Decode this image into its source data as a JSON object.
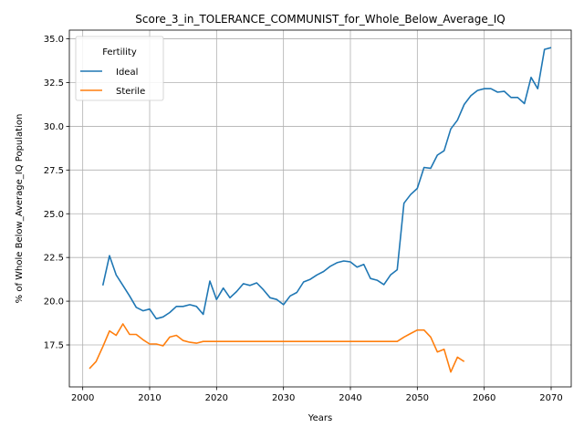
{
  "chart_data": {
    "type": "line",
    "title": "Score_3_in_TOLERANCE_COMMUNIST_for_Whole_Below_Average_IQ",
    "xlabel": "Years",
    "ylabel": "% of Whole Below_Average_IQ Population",
    "xlim": [
      1998,
      2073
    ],
    "ylim": [
      15.1,
      35.5
    ],
    "xticks": [
      2000,
      2010,
      2020,
      2030,
      2040,
      2050,
      2060,
      2070
    ],
    "yticks": [
      17.5,
      20.0,
      22.5,
      25.0,
      27.5,
      30.0,
      32.5,
      35.0
    ],
    "ytick_labels": [
      "17.5",
      "20.0",
      "22.5",
      "25.0",
      "27.5",
      "30.0",
      "32.5",
      "35.0"
    ],
    "grid": true,
    "legend": {
      "title": "Fertility",
      "placement": "top-left"
    },
    "series": [
      {
        "name": "Ideal",
        "color": "#1f77b4",
        "x": [
          2003,
          2004,
          2005,
          2006,
          2007,
          2008,
          2009,
          2010,
          2011,
          2012,
          2013,
          2014,
          2015,
          2016,
          2017,
          2018,
          2019,
          2020,
          2021,
          2022,
          2023,
          2024,
          2025,
          2026,
          2027,
          2028,
          2029,
          2030,
          2031,
          2032,
          2033,
          2034,
          2035,
          2036,
          2037,
          2038,
          2039,
          2040,
          2041,
          2042,
          2043,
          2044,
          2045,
          2046,
          2047,
          2048,
          2049,
          2050,
          2051,
          2052,
          2053,
          2054,
          2055,
          2056,
          2057,
          2058,
          2059,
          2060,
          2061,
          2062,
          2063,
          2064,
          2065,
          2066,
          2067,
          2068,
          2069,
          2070
        ],
        "y": [
          20.9,
          22.6,
          21.5,
          20.9,
          20.3,
          19.65,
          19.45,
          19.55,
          19.0,
          19.1,
          19.35,
          19.7,
          19.7,
          19.8,
          19.7,
          19.25,
          21.15,
          20.1,
          20.75,
          20.2,
          20.55,
          21.0,
          20.9,
          21.05,
          20.65,
          20.2,
          20.1,
          19.8,
          20.3,
          20.5,
          21.1,
          21.25,
          21.5,
          21.7,
          22.0,
          22.2,
          22.3,
          22.25,
          21.95,
          22.1,
          21.3,
          21.2,
          20.95,
          21.5,
          21.8,
          25.6,
          26.1,
          26.45,
          27.65,
          27.6,
          28.35,
          28.6,
          29.85,
          30.35,
          31.25,
          31.75,
          32.05,
          32.15,
          32.15,
          31.95,
          32.0,
          31.65,
          31.65,
          31.3,
          32.8,
          32.15,
          34.4,
          34.5
        ]
      },
      {
        "name": "Sterile",
        "color": "#ff7f0e",
        "x": [
          2001,
          2002,
          2003,
          2004,
          2005,
          2006,
          2007,
          2008,
          2009,
          2010,
          2011,
          2012,
          2013,
          2014,
          2015,
          2016,
          2017,
          2018,
          2019,
          2020,
          2021,
          2022,
          2023,
          2024,
          2025,
          2026,
          2027,
          2028,
          2029,
          2030,
          2031,
          2032,
          2033,
          2034,
          2035,
          2036,
          2037,
          2038,
          2039,
          2040,
          2041,
          2042,
          2043,
          2044,
          2045,
          2046,
          2047,
          2048,
          2049,
          2050,
          2051,
          2052,
          2053,
          2054,
          2055,
          2056,
          2057
        ],
        "y": [
          16.15,
          16.55,
          17.4,
          18.3,
          18.05,
          18.7,
          18.1,
          18.1,
          17.8,
          17.55,
          17.55,
          17.45,
          17.95,
          18.05,
          17.75,
          17.65,
          17.6,
          17.7,
          17.7,
          17.7,
          17.7,
          17.7,
          17.7,
          17.7,
          17.7,
          17.7,
          17.7,
          17.7,
          17.7,
          17.7,
          17.7,
          17.7,
          17.7,
          17.7,
          17.7,
          17.7,
          17.7,
          17.7,
          17.7,
          17.7,
          17.7,
          17.7,
          17.7,
          17.7,
          17.7,
          17.7,
          17.7,
          17.95,
          18.15,
          18.35,
          18.35,
          17.95,
          17.1,
          17.25,
          15.95,
          16.8,
          16.55
        ]
      }
    ]
  }
}
